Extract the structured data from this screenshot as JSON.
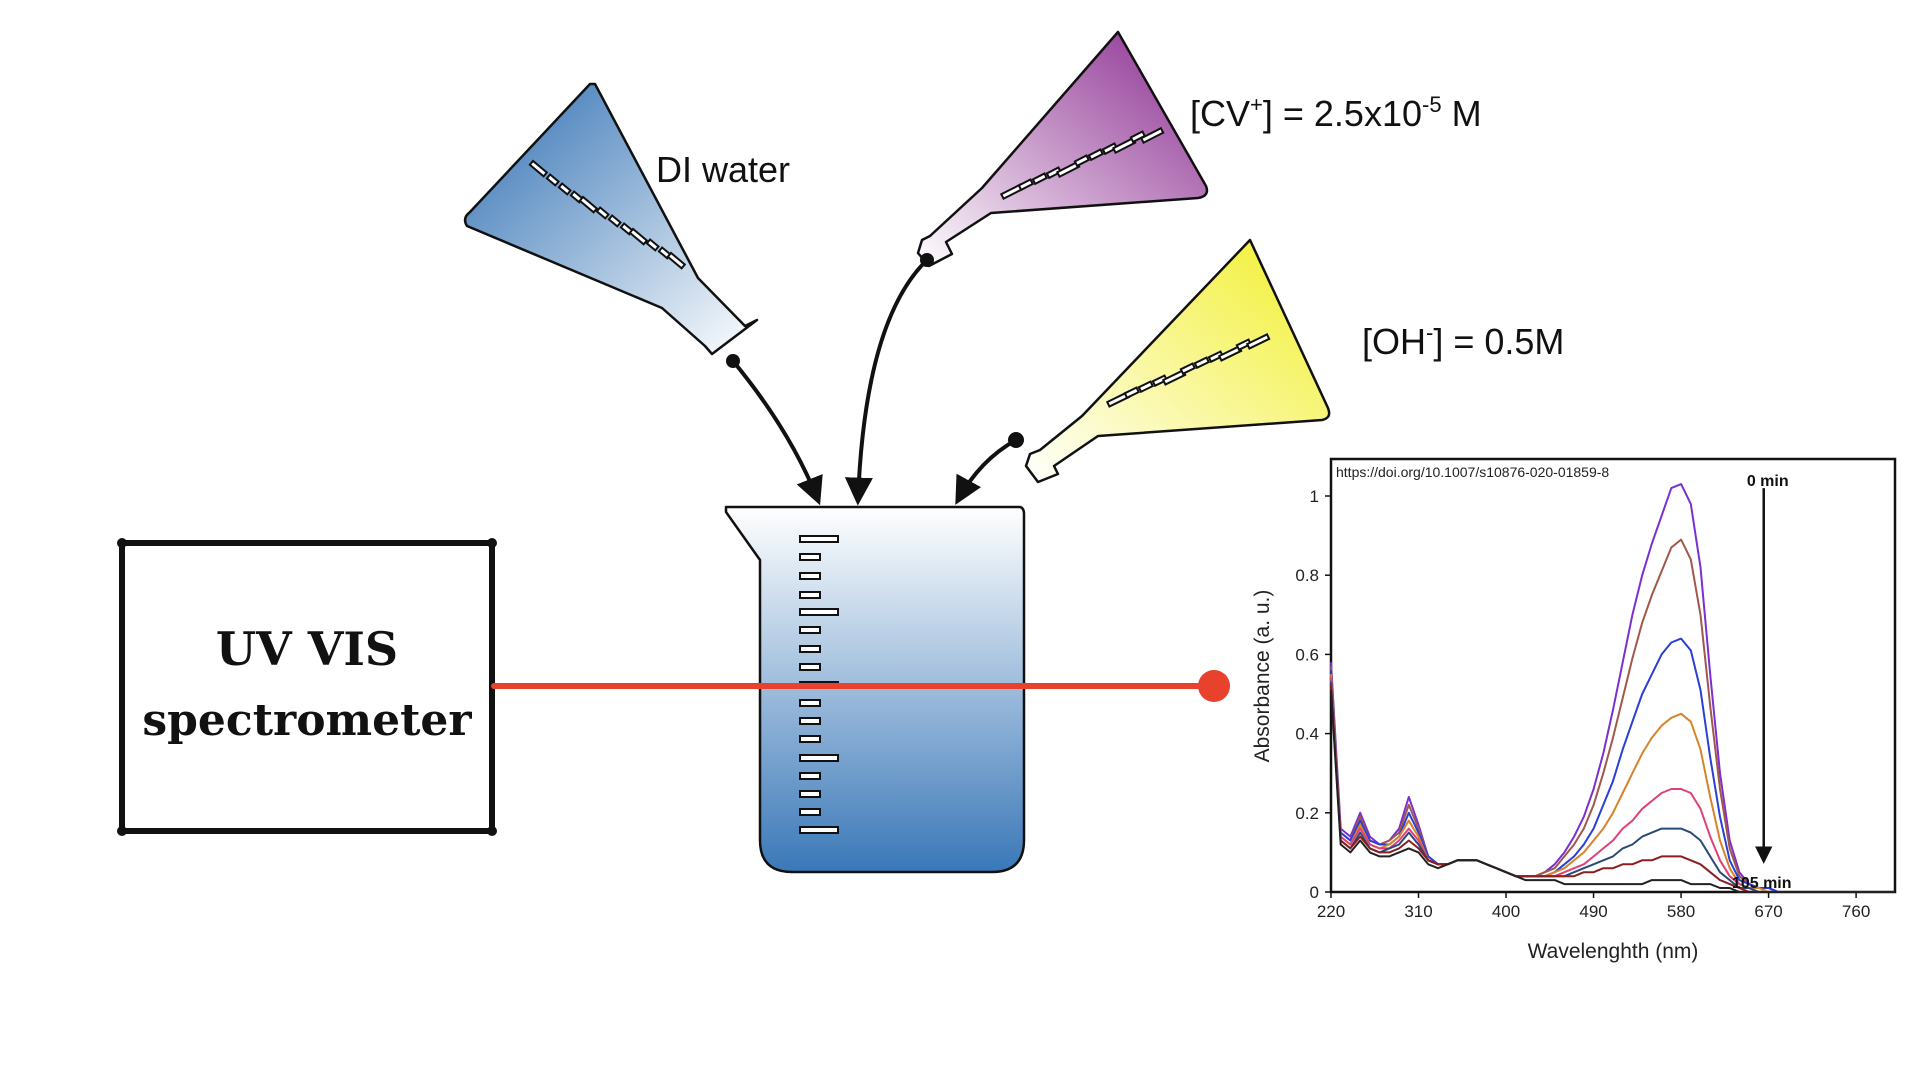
{
  "spectrometer": {
    "line1": "UV VIS",
    "line2": "spectrometer"
  },
  "reagents": {
    "water": {
      "label": "DI water"
    },
    "cv": {
      "label_main": "[CV",
      "label_sup": "+",
      "label_mid": "] = 2.5x10",
      "label_exp": "-5",
      "label_end": " M"
    },
    "oh": {
      "label_main": "[OH",
      "label_sup": "-",
      "label_end": "] = 0.5M"
    }
  },
  "colors": {
    "water_flask": "#2f6fb3",
    "cv_flask": "#8a2a8f",
    "oh_flask": "#f2ef2a",
    "beam": "#e8412c",
    "beaker": "#3a78b8"
  },
  "chart_data": {
    "type": "line",
    "source_text": "https://doi.org/10.1007/s10876-020-01859-8",
    "xlabel": "Wavelenghth  (nm)",
    "ylabel": "Absorbance (a. u.)",
    "xlim": [
      220,
      800
    ],
    "ylim": [
      0,
      1.05
    ],
    "x_ticks": [
      220,
      310,
      400,
      490,
      580,
      670,
      760
    ],
    "y_ticks": [
      {
        "value": 0,
        "label": "0"
      },
      {
        "value": 0.2,
        "label": "0.2"
      },
      {
        "value": 0.4,
        "label": "0.4"
      },
      {
        "value": 0.6,
        "label": "0.6"
      },
      {
        "value": 0.8,
        "label": "0.8"
      },
      {
        "value": 1.0,
        "label": "1"
      }
    ],
    "annotation_top": "0 min",
    "annotation_bottom": "105 min",
    "annotation_x": 665,
    "x": [
      220,
      230,
      240,
      250,
      260,
      270,
      280,
      290,
      300,
      310,
      320,
      330,
      340,
      350,
      360,
      370,
      380,
      390,
      400,
      410,
      420,
      430,
      440,
      450,
      460,
      470,
      480,
      490,
      500,
      510,
      520,
      530,
      540,
      550,
      560,
      570,
      580,
      590,
      600,
      610,
      620,
      630,
      640,
      650,
      660,
      670,
      680,
      700,
      720,
      740,
      760,
      780,
      800
    ],
    "series": [
      {
        "color": "#7b2fd1",
        "values": [
          0.58,
          0.16,
          0.14,
          0.2,
          0.14,
          0.12,
          0.13,
          0.16,
          0.24,
          0.17,
          0.09,
          0.07,
          0.07,
          0.08,
          0.08,
          0.08,
          0.07,
          0.06,
          0.05,
          0.04,
          0.04,
          0.04,
          0.05,
          0.07,
          0.1,
          0.14,
          0.19,
          0.26,
          0.35,
          0.46,
          0.58,
          0.7,
          0.8,
          0.88,
          0.95,
          1.02,
          1.03,
          0.98,
          0.82,
          0.55,
          0.3,
          0.13,
          0.05,
          0.02,
          0.01,
          0.01,
          0.0,
          0.0,
          0.0,
          0.0,
          0.0,
          0.0,
          0.0
        ]
      },
      {
        "color": "#a0584b",
        "values": [
          0.57,
          0.15,
          0.13,
          0.19,
          0.13,
          0.12,
          0.13,
          0.15,
          0.22,
          0.16,
          0.09,
          0.07,
          0.07,
          0.08,
          0.08,
          0.08,
          0.07,
          0.06,
          0.05,
          0.04,
          0.04,
          0.04,
          0.05,
          0.06,
          0.09,
          0.12,
          0.16,
          0.22,
          0.3,
          0.39,
          0.49,
          0.59,
          0.68,
          0.75,
          0.81,
          0.87,
          0.89,
          0.84,
          0.7,
          0.47,
          0.26,
          0.11,
          0.04,
          0.02,
          0.01,
          0.01,
          0.0,
          0.0,
          0.0,
          0.0,
          0.0,
          0.0,
          0.0
        ]
      },
      {
        "color": "#2a3fd6",
        "values": [
          0.56,
          0.15,
          0.13,
          0.18,
          0.13,
          0.12,
          0.12,
          0.14,
          0.2,
          0.15,
          0.09,
          0.07,
          0.07,
          0.08,
          0.08,
          0.08,
          0.07,
          0.06,
          0.05,
          0.04,
          0.04,
          0.04,
          0.04,
          0.05,
          0.07,
          0.09,
          0.12,
          0.16,
          0.22,
          0.28,
          0.36,
          0.43,
          0.5,
          0.55,
          0.6,
          0.63,
          0.64,
          0.61,
          0.51,
          0.34,
          0.19,
          0.08,
          0.03,
          0.02,
          0.01,
          0.01,
          0.0,
          0.0,
          0.0,
          0.0,
          0.0,
          0.0,
          0.0
        ]
      },
      {
        "color": "#d6842a",
        "values": [
          0.55,
          0.14,
          0.12,
          0.17,
          0.12,
          0.11,
          0.12,
          0.14,
          0.18,
          0.14,
          0.08,
          0.07,
          0.07,
          0.08,
          0.08,
          0.08,
          0.07,
          0.06,
          0.05,
          0.04,
          0.04,
          0.04,
          0.04,
          0.05,
          0.06,
          0.08,
          0.1,
          0.13,
          0.16,
          0.2,
          0.25,
          0.3,
          0.35,
          0.39,
          0.42,
          0.44,
          0.45,
          0.43,
          0.36,
          0.24,
          0.13,
          0.06,
          0.02,
          0.01,
          0.01,
          0.0,
          0.0,
          0.0,
          0.0,
          0.0,
          0.0,
          0.0,
          0.0
        ]
      },
      {
        "color": "#e0407a",
        "values": [
          0.54,
          0.14,
          0.12,
          0.16,
          0.12,
          0.11,
          0.11,
          0.13,
          0.16,
          0.13,
          0.08,
          0.07,
          0.07,
          0.08,
          0.08,
          0.08,
          0.07,
          0.06,
          0.05,
          0.04,
          0.04,
          0.04,
          0.04,
          0.04,
          0.05,
          0.06,
          0.07,
          0.09,
          0.11,
          0.13,
          0.16,
          0.18,
          0.21,
          0.23,
          0.25,
          0.26,
          0.26,
          0.25,
          0.21,
          0.14,
          0.08,
          0.04,
          0.02,
          0.01,
          0.0,
          0.0,
          0.0,
          0.0,
          0.0,
          0.0,
          0.0,
          0.0,
          0.0
        ]
      },
      {
        "color": "#2a4a7a",
        "values": [
          0.53,
          0.13,
          0.11,
          0.15,
          0.11,
          0.1,
          0.11,
          0.12,
          0.15,
          0.12,
          0.08,
          0.07,
          0.07,
          0.08,
          0.08,
          0.08,
          0.07,
          0.06,
          0.05,
          0.04,
          0.04,
          0.04,
          0.04,
          0.04,
          0.04,
          0.05,
          0.06,
          0.07,
          0.08,
          0.09,
          0.11,
          0.12,
          0.14,
          0.15,
          0.16,
          0.16,
          0.16,
          0.15,
          0.13,
          0.09,
          0.05,
          0.03,
          0.01,
          0.01,
          0.0,
          0.0,
          0.0,
          0.0,
          0.0,
          0.0,
          0.0,
          0.0,
          0.0
        ]
      },
      {
        "color": "#8b1e1e",
        "values": [
          0.52,
          0.13,
          0.11,
          0.14,
          0.11,
          0.1,
          0.1,
          0.11,
          0.13,
          0.11,
          0.08,
          0.07,
          0.07,
          0.08,
          0.08,
          0.08,
          0.07,
          0.06,
          0.05,
          0.04,
          0.04,
          0.04,
          0.04,
          0.04,
          0.04,
          0.04,
          0.05,
          0.05,
          0.06,
          0.06,
          0.07,
          0.07,
          0.08,
          0.08,
          0.09,
          0.09,
          0.09,
          0.08,
          0.07,
          0.05,
          0.03,
          0.02,
          0.01,
          0.0,
          0.0,
          0.0,
          0.0,
          0.0,
          0.0,
          0.0,
          0.0,
          0.0,
          0.0
        ]
      },
      {
        "color": "#222222",
        "values": [
          0.51,
          0.12,
          0.1,
          0.13,
          0.1,
          0.09,
          0.09,
          0.1,
          0.11,
          0.1,
          0.07,
          0.06,
          0.07,
          0.08,
          0.08,
          0.08,
          0.07,
          0.06,
          0.05,
          0.04,
          0.03,
          0.03,
          0.03,
          0.03,
          0.02,
          0.02,
          0.02,
          0.02,
          0.02,
          0.02,
          0.02,
          0.02,
          0.02,
          0.03,
          0.03,
          0.03,
          0.03,
          0.02,
          0.02,
          0.02,
          0.01,
          0.01,
          0.0,
          0.0,
          0.0,
          0.0,
          0.0,
          0.0,
          0.0,
          0.0,
          0.0,
          0.0,
          0.0
        ]
      }
    ]
  }
}
